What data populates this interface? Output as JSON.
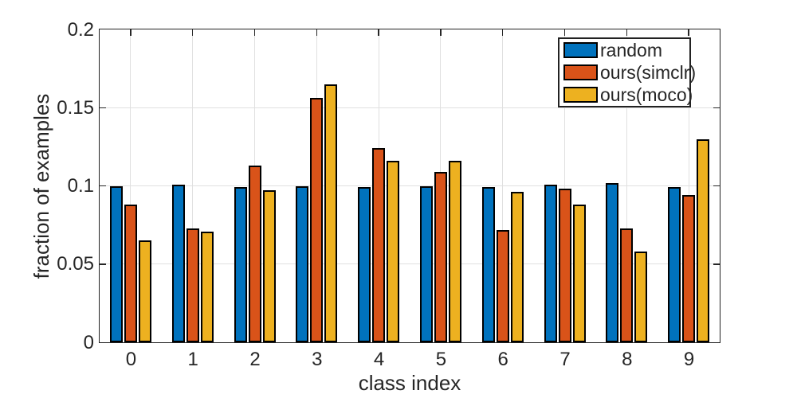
{
  "chart_data": {
    "type": "bar",
    "title": "",
    "xlabel": "class index",
    "ylabel": "fraction of examples",
    "categories": [
      "0",
      "1",
      "2",
      "3",
      "4",
      "5",
      "6",
      "7",
      "8",
      "9"
    ],
    "series": [
      {
        "name": "random",
        "color": "#0072BD",
        "values": [
          0.1,
          0.101,
          0.099,
          0.1,
          0.099,
          0.1,
          0.099,
          0.101,
          0.102,
          0.099
        ]
      },
      {
        "name": "ours(simclr)",
        "color": "#D95319",
        "values": [
          0.088,
          0.073,
          0.113,
          0.156,
          0.124,
          0.109,
          0.072,
          0.098,
          0.073,
          0.094
        ]
      },
      {
        "name": "ours(moco)",
        "color": "#EDB120",
        "values": [
          0.065,
          0.071,
          0.097,
          0.165,
          0.116,
          0.116,
          0.096,
          0.088,
          0.058,
          0.13
        ]
      }
    ],
    "ylim": [
      0,
      0.2
    ],
    "yticks": [
      0,
      0.05,
      0.1,
      0.15,
      0.2
    ],
    "ytick_labels": [
      "0",
      "0.05",
      "0.1",
      "0.15",
      "0.2"
    ],
    "grid": true,
    "legend_position": "top-right",
    "colors": {
      "bar_edge": "#000000",
      "grid": "#E0E0E0",
      "axis": "#262626",
      "background": "#FFFFFF"
    }
  }
}
